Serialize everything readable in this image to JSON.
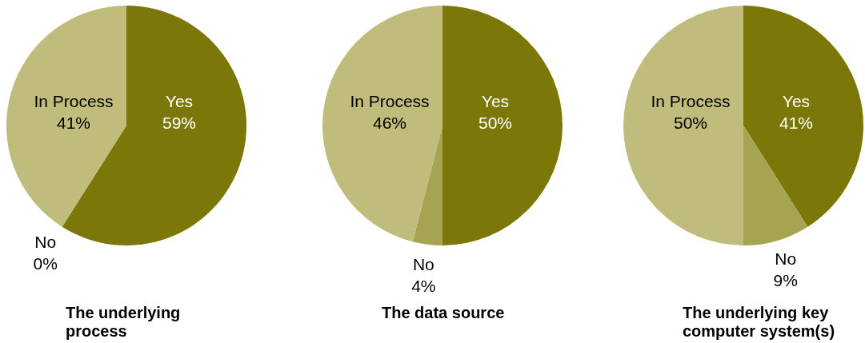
{
  "chart_data": [
    {
      "type": "pie",
      "title": "The underlying process",
      "categories": [
        "Yes",
        "No",
        "In Process"
      ],
      "values": [
        59,
        0,
        41
      ],
      "colors": [
        "#7b7709",
        "#a6a451",
        "#bfbc7c"
      ],
      "value_labels": [
        "59%",
        "0%",
        "41%"
      ]
    },
    {
      "type": "pie",
      "title": "The data source",
      "categories": [
        "Yes",
        "No",
        "In Process"
      ],
      "values": [
        50,
        4,
        46
      ],
      "colors": [
        "#7b7709",
        "#a6a451",
        "#bfbc7c"
      ],
      "value_labels": [
        "50%",
        "4%",
        "46%"
      ]
    },
    {
      "type": "pie",
      "title": "The underlying key computer system(s)",
      "categories": [
        "Yes",
        "No",
        "In Process"
      ],
      "values": [
        41,
        9,
        50
      ],
      "colors": [
        "#7b7709",
        "#a6a451",
        "#bfbc7c"
      ],
      "value_labels": [
        "41%",
        "9%",
        "50%"
      ]
    }
  ]
}
